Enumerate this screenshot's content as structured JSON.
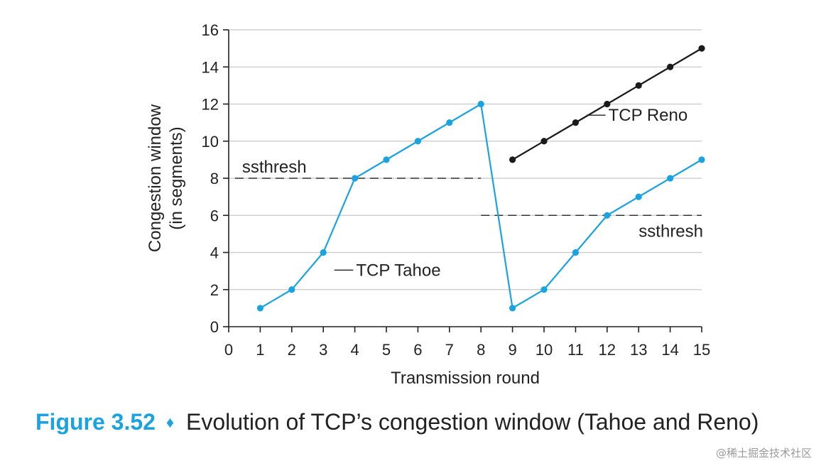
{
  "chart_data": {
    "type": "line",
    "xlabel": "Transmission round",
    "ylabel": [
      "Congestion window",
      "(in segments)"
    ],
    "xlim": [
      0,
      15
    ],
    "ylim": [
      0,
      16
    ],
    "xticks": [
      0,
      1,
      2,
      3,
      4,
      5,
      6,
      7,
      8,
      9,
      10,
      11,
      12,
      13,
      14,
      15
    ],
    "yticks": [
      0,
      2,
      4,
      6,
      8,
      10,
      12,
      14,
      16
    ],
    "grid": "horizontal",
    "series": [
      {
        "name": "TCP Tahoe",
        "color": "#1aa3e0",
        "x": [
          1,
          2,
          3,
          4,
          5,
          6,
          7,
          8,
          9,
          10,
          11,
          12,
          13,
          14,
          15
        ],
        "y": [
          1,
          2,
          4,
          8,
          9,
          10,
          11,
          12,
          1,
          2,
          4,
          6,
          7,
          8,
          9
        ]
      },
      {
        "name": "TCP Reno",
        "color": "#1a1a1a",
        "x": [
          9,
          10,
          11,
          12,
          13,
          14,
          15
        ],
        "y": [
          9,
          10,
          11,
          12,
          13,
          14,
          15
        ]
      }
    ],
    "thresholds": [
      {
        "label": "ssthresh",
        "y": 8,
        "x_from": 0.2,
        "x_to": 8
      },
      {
        "label": "ssthresh",
        "y": 6,
        "x_from": 8,
        "x_to": 15
      }
    ],
    "annotations": [
      {
        "text": "TCP Tahoe",
        "series": "TCP Tahoe",
        "at_x": 3.4,
        "at_y": 3
      },
      {
        "text": "TCP Reno",
        "series": "TCP Reno",
        "at_x": 11.4,
        "at_y": 11.3
      }
    ]
  },
  "caption": {
    "label": "Figure 3.52",
    "separator": "♦",
    "text": "Evolution of TCP’s congestion window (Tahoe and Reno)"
  },
  "watermark": "@稀土掘金技术社区"
}
